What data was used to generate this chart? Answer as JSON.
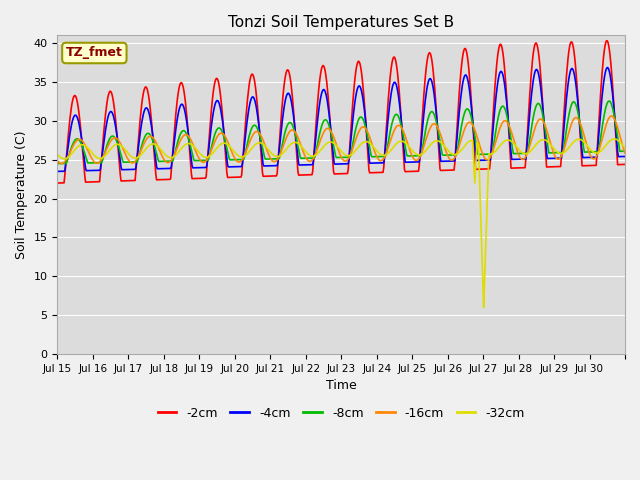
{
  "title": "Tonzi Soil Temperatures Set B",
  "xlabel": "Time",
  "ylabel": "Soil Temperature (C)",
  "annotation_text": "TZ_fmet",
  "ylim": [
    0,
    41
  ],
  "yticks": [
    0,
    5,
    10,
    15,
    20,
    25,
    30,
    35,
    40
  ],
  "colors": {
    "-2cm": "#ff0000",
    "-4cm": "#0000ff",
    "-8cm": "#00bb00",
    "-16cm": "#ff8800",
    "-32cm": "#dddd00"
  },
  "legend_labels": [
    "-2cm",
    "-4cm",
    "-8cm",
    "-16cm",
    "-32cm"
  ],
  "fig_bg_color": "#f0f0f0",
  "plot_bg_color": "#dcdcdc",
  "n_days": 16,
  "n_per_day": 48,
  "spike_day": 12.0,
  "spike_min": 6.0
}
